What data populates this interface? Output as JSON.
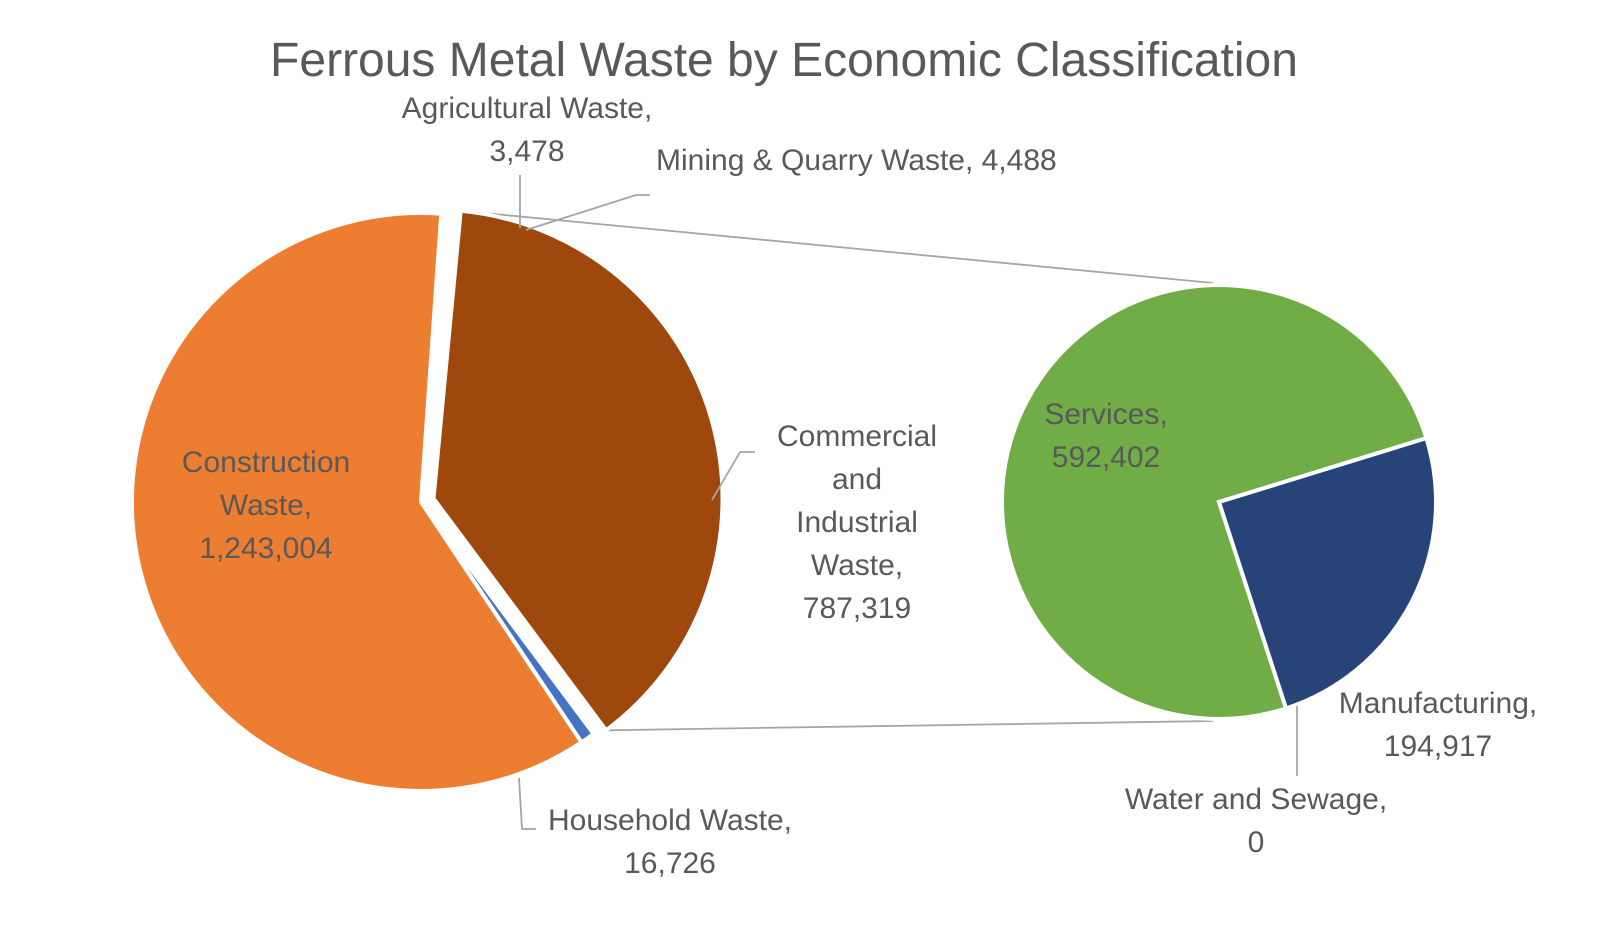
{
  "chart_data": {
    "type": "pie",
    "subtype": "pie-of-pie",
    "title": "Ferrous Metal Waste by Economic Classification",
    "main_pie": [
      {
        "name": "Agricultural Waste",
        "value": 3478,
        "label": [
          "Agricultural Waste,",
          "3,478"
        ],
        "color": "#5B9BD5"
      },
      {
        "name": "Mining & Quarry Waste",
        "value": 4488,
        "label": [
          "Mining & Quarry Waste, 4,488"
        ],
        "color": "#A5A5A5"
      },
      {
        "name": "Commercial and Industrial Waste",
        "value": 787319,
        "label": [
          "Commercial",
          "and",
          "Industrial",
          "Waste,",
          "787,319"
        ],
        "color": "#9E480E"
      },
      {
        "name": "Household Waste",
        "value": 16726,
        "label": [
          "Household Waste,",
          "16,726"
        ],
        "color": "#4472C4"
      },
      {
        "name": "Construction Waste",
        "value": 1243004,
        "label": [
          "Construction",
          "Waste,",
          "1,243,004"
        ],
        "color": "#ED7D31"
      }
    ],
    "secondary_pie": {
      "breakout_of": "Commercial and Industrial Waste",
      "slices": [
        {
          "name": "Services",
          "value": 592402,
          "label": [
            "Services,",
            "592,402"
          ],
          "color": "#70AD47"
        },
        {
          "name": "Manufacturing",
          "value": 194917,
          "label": [
            "Manufacturing,",
            "194,917"
          ],
          "color": "#264478"
        },
        {
          "name": "Water and Sewage",
          "value": 0,
          "label": [
            "Water and Sewage,",
            "0"
          ],
          "color": "#A5A5A5"
        }
      ]
    }
  }
}
